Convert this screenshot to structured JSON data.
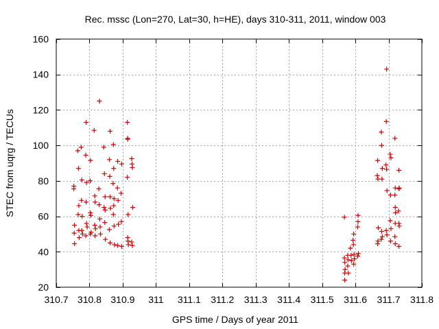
{
  "chart_data": {
    "type": "scatter",
    "title": "Rec. mssc (Lon=270, Lat=30, h=HE), days 310-311, 2011, window 003",
    "xlabel": "GPS time / Days of year 2011",
    "ylabel": "STEC from uqrg / TECUs",
    "xlim": [
      310.7,
      311.8
    ],
    "ylim": [
      20,
      160
    ],
    "xticks": [
      310.7,
      310.8,
      310.9,
      311,
      311.1,
      311.2,
      311.3,
      311.4,
      311.5,
      311.6,
      311.7,
      311.8
    ],
    "xtick_labels": [
      "310.7",
      "310.8",
      "310.9",
      "311",
      "311.1",
      "311.2",
      "311.3",
      "311.4",
      "311.5",
      "311.6",
      "311.7",
      "311.8"
    ],
    "yticks": [
      20,
      40,
      60,
      80,
      100,
      120,
      140,
      160
    ],
    "ytick_labels": [
      "20",
      "40",
      "60",
      "80",
      "100",
      "120",
      "140",
      "160"
    ],
    "grid": true,
    "marker": "+",
    "color": "#cc0000",
    "points": [
      [
        310.753,
        77
      ],
      [
        310.753,
        75.5
      ],
      [
        310.755,
        55
      ],
      [
        310.754,
        50.5
      ],
      [
        310.755,
        44.5
      ],
      [
        310.765,
        97
      ],
      [
        310.767,
        87
      ],
      [
        310.768,
        66
      ],
      [
        310.766,
        61
      ],
      [
        310.768,
        52
      ],
      [
        310.769,
        48
      ],
      [
        310.775,
        99
      ],
      [
        310.777,
        80.5
      ],
      [
        310.776,
        69
      ],
      [
        310.778,
        60
      ],
      [
        310.777,
        52
      ],
      [
        310.779,
        50
      ],
      [
        310.79,
        113
      ],
      [
        310.789,
        94.5
      ],
      [
        310.791,
        79
      ],
      [
        310.79,
        68
      ],
      [
        310.791,
        56
      ],
      [
        310.793,
        54
      ],
      [
        310.789,
        49
      ],
      [
        310.803,
        91.5
      ],
      [
        310.802,
        80
      ],
      [
        310.803,
        62
      ],
      [
        310.804,
        60.5
      ],
      [
        310.803,
        50
      ],
      [
        310.805,
        51
      ],
      [
        310.814,
        108.5
      ],
      [
        310.816,
        71.5
      ],
      [
        310.817,
        68
      ],
      [
        310.816,
        55
      ],
      [
        310.818,
        53
      ],
      [
        310.817,
        49
      ],
      [
        310.83,
        125
      ],
      [
        310.828,
        75.5
      ],
      [
        310.829,
        66.5
      ],
      [
        310.831,
        58.5
      ],
      [
        310.832,
        54
      ],
      [
        310.833,
        50
      ],
      [
        310.843,
        99
      ],
      [
        310.845,
        84
      ],
      [
        310.847,
        71
      ],
      [
        310.844,
        65
      ],
      [
        310.847,
        63.5
      ],
      [
        310.846,
        56.5
      ],
      [
        310.848,
        47
      ],
      [
        310.862,
        108
      ],
      [
        310.86,
        92
      ],
      [
        310.861,
        82.5
      ],
      [
        310.862,
        71
      ],
      [
        310.863,
        64.5
      ],
      [
        310.86,
        52.5
      ],
      [
        310.862,
        45
      ],
      [
        310.872,
        100.5
      ],
      [
        310.873,
        87
      ],
      [
        310.871,
        78.5
      ],
      [
        310.874,
        70
      ],
      [
        310.873,
        66
      ],
      [
        310.872,
        61
      ],
      [
        310.874,
        54.5
      ],
      [
        310.875,
        44
      ],
      [
        310.885,
        91
      ],
      [
        310.884,
        76
      ],
      [
        310.886,
        69
      ],
      [
        310.887,
        55.5
      ],
      [
        310.885,
        43.5
      ],
      [
        310.897,
        89.5
      ],
      [
        310.895,
        73
      ],
      [
        310.896,
        57
      ],
      [
        310.897,
        43
      ],
      [
        310.914,
        113
      ],
      [
        310.915,
        104
      ],
      [
        310.915,
        103.5
      ],
      [
        310.914,
        82
      ],
      [
        310.916,
        61
      ],
      [
        310.915,
        48
      ],
      [
        310.916,
        46
      ],
      [
        310.917,
        44
      ],
      [
        310.927,
        92.5
      ],
      [
        310.928,
        89.5
      ],
      [
        310.929,
        87.5
      ],
      [
        310.93,
        65
      ],
      [
        310.927,
        45.5
      ],
      [
        310.929,
        43.5
      ],
      [
        311.567,
        59.5
      ],
      [
        311.567,
        36.5
      ],
      [
        311.568,
        34
      ],
      [
        311.569,
        30
      ],
      [
        311.568,
        28
      ],
      [
        311.568,
        24
      ],
      [
        311.577,
        38
      ],
      [
        311.578,
        35.5
      ],
      [
        311.577,
        32
      ],
      [
        311.579,
        28
      ],
      [
        311.585,
        42
      ],
      [
        311.587,
        38
      ],
      [
        311.588,
        35
      ],
      [
        311.595,
        50
      ],
      [
        311.593,
        46.5
      ],
      [
        311.594,
        44
      ],
      [
        311.596,
        38.5
      ],
      [
        311.597,
        36
      ],
      [
        311.595,
        33
      ],
      [
        311.608,
        60.5
      ],
      [
        311.608,
        57
      ],
      [
        311.607,
        54
      ],
      [
        311.609,
        39
      ],
      [
        311.607,
        37.5
      ],
      [
        311.667,
        91.5
      ],
      [
        311.666,
        83
      ],
      [
        311.668,
        81
      ],
      [
        311.669,
        53.5
      ],
      [
        311.668,
        46
      ],
      [
        311.667,
        44.5
      ],
      [
        311.678,
        107.5
      ],
      [
        311.679,
        100
      ],
      [
        311.681,
        87
      ],
      [
        311.68,
        81
      ],
      [
        311.679,
        51.5
      ],
      [
        311.681,
        48.5
      ],
      [
        311.678,
        47
      ],
      [
        311.694,
        143
      ],
      [
        311.693,
        113.5
      ],
      [
        311.692,
        89
      ],
      [
        311.694,
        86.5
      ],
      [
        311.695,
        74.5
      ],
      [
        311.693,
        52
      ],
      [
        311.695,
        49.5
      ],
      [
        311.705,
        95
      ],
      [
        311.707,
        93
      ],
      [
        311.706,
        72
      ],
      [
        311.705,
        57.5
      ],
      [
        311.707,
        53
      ],
      [
        311.706,
        46
      ],
      [
        311.719,
        104
      ],
      [
        311.72,
        76
      ],
      [
        311.719,
        72
      ],
      [
        311.72,
        65
      ],
      [
        311.721,
        62
      ],
      [
        311.72,
        56
      ],
      [
        311.719,
        48.5
      ],
      [
        311.72,
        44.5
      ],
      [
        311.731,
        86
      ],
      [
        311.732,
        76
      ],
      [
        311.731,
        75.5
      ],
      [
        311.73,
        63
      ],
      [
        311.731,
        56
      ],
      [
        311.732,
        54.5
      ],
      [
        311.731,
        43
      ]
    ]
  }
}
